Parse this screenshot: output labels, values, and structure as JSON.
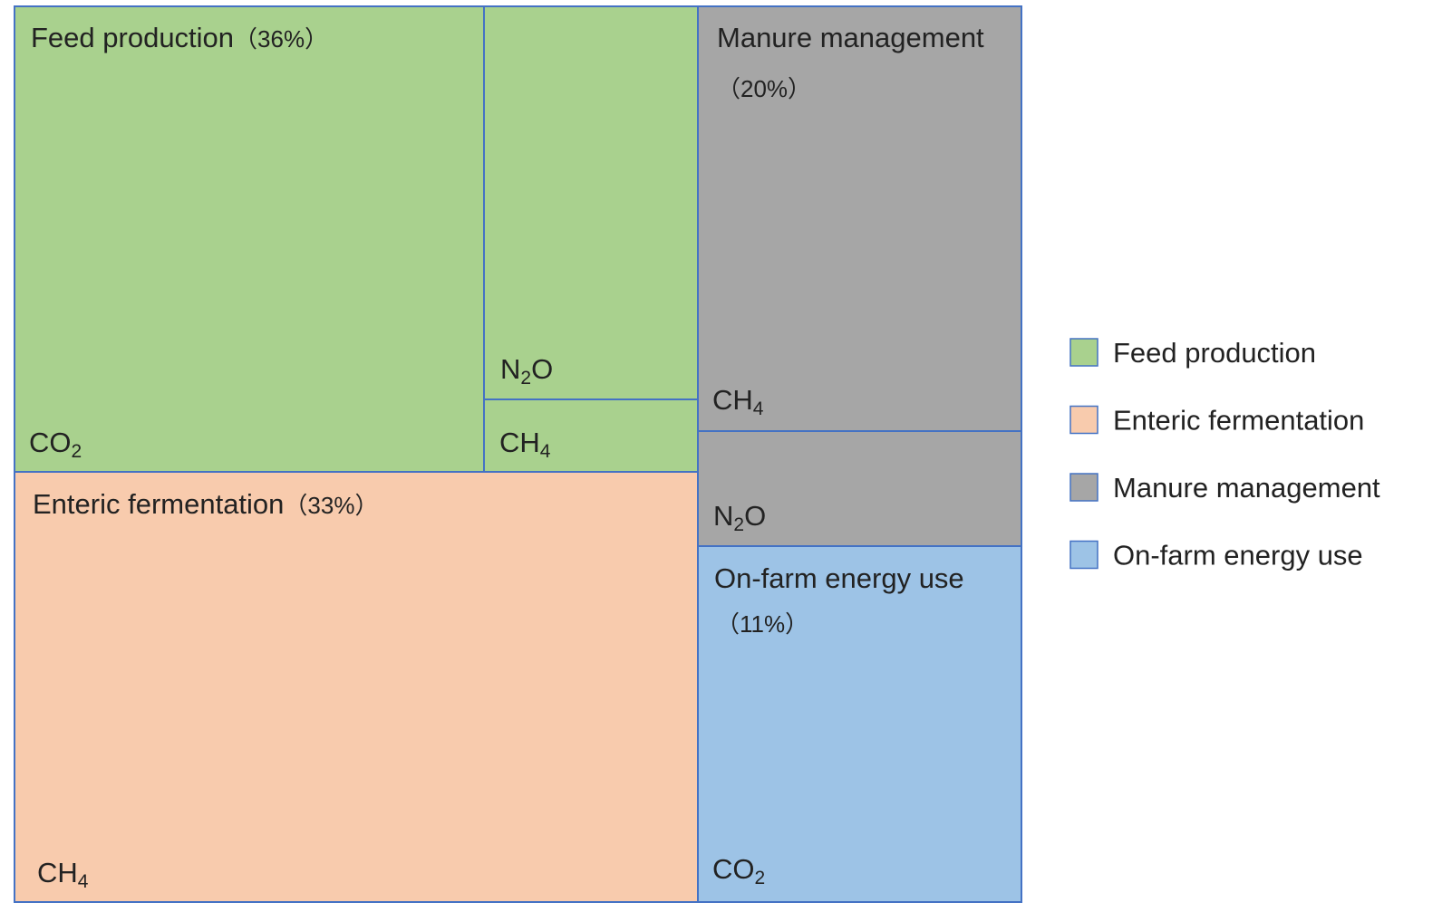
{
  "chart_data": {
    "type": "treemap",
    "categories": [
      {
        "key": "feed",
        "name": "Feed production",
        "share_label": "（36%）",
        "share_percent": 36,
        "color": "#a9d18e",
        "gases": [
          {
            "key": "co2",
            "formula": "CO",
            "sub": "2"
          },
          {
            "key": "n2o",
            "formula": "N",
            "sub": "2",
            "tail": "O"
          },
          {
            "key": "ch4",
            "formula": "CH",
            "sub": "4"
          }
        ]
      },
      {
        "key": "enteric",
        "name": "Enteric fermentation",
        "share_label": "（33%）",
        "share_percent": 33,
        "color": "#f8cbad",
        "gases": [
          {
            "key": "ch4",
            "formula": "CH",
            "sub": "4"
          }
        ]
      },
      {
        "key": "manure",
        "name": "Manure management",
        "share_label": "（20%）",
        "share_percent": 20,
        "color": "#a6a6a6",
        "gases": [
          {
            "key": "ch4",
            "formula": "CH",
            "sub": "4"
          },
          {
            "key": "n2o",
            "formula": "N",
            "sub": "2",
            "tail": "O"
          }
        ]
      },
      {
        "key": "energy",
        "name": "On-farm energy use",
        "share_label": "（11%）",
        "share_percent": 11,
        "color": "#9dc3e6",
        "gases": [
          {
            "key": "co2",
            "formula": "CO",
            "sub": "2"
          }
        ]
      }
    ],
    "border_color": "#4472c4",
    "legend": {
      "position": "right",
      "items": [
        "Feed production",
        "Enteric fermentation",
        "Manure management",
        "On-farm energy use"
      ]
    }
  }
}
